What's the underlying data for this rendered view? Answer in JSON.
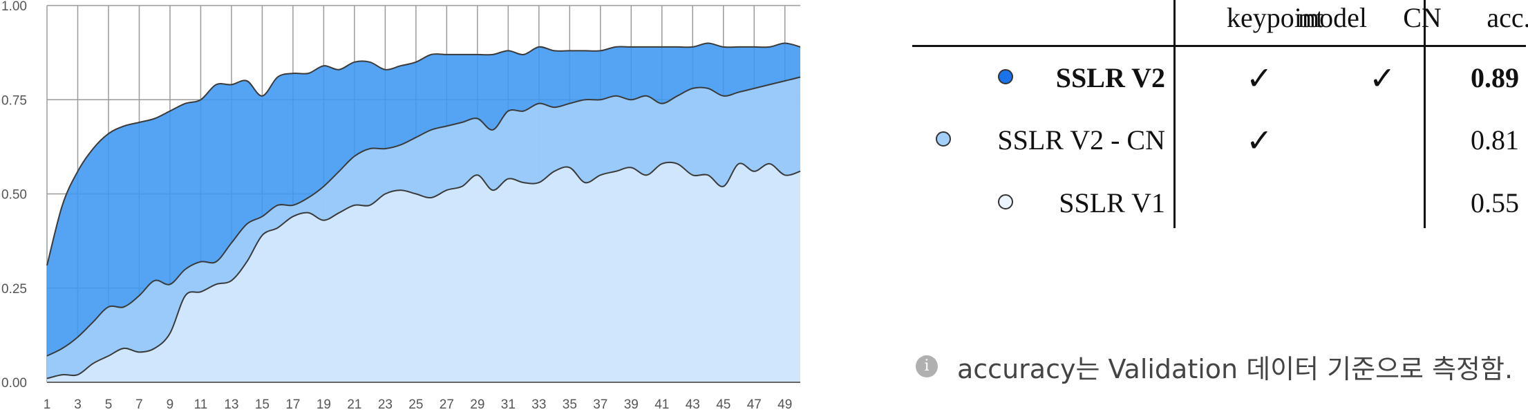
{
  "chart_data": {
    "type": "area",
    "x": [
      1,
      2,
      3,
      4,
      5,
      6,
      7,
      8,
      9,
      10,
      11,
      12,
      13,
      14,
      15,
      16,
      17,
      18,
      19,
      20,
      21,
      22,
      23,
      24,
      25,
      26,
      27,
      28,
      29,
      30,
      31,
      32,
      33,
      34,
      35,
      36,
      37,
      38,
      39,
      40,
      41,
      42,
      43,
      44,
      45,
      46,
      47,
      48,
      49,
      50
    ],
    "xticks": [
      "1",
      "3",
      "5",
      "7",
      "9",
      "11",
      "13",
      "15",
      "17",
      "19",
      "21",
      "23",
      "25",
      "27",
      "29",
      "31",
      "33",
      "35",
      "37",
      "39",
      "41",
      "43",
      "45",
      "47",
      "49"
    ],
    "yticks": [
      "0.00",
      "0.25",
      "0.50",
      "0.75",
      "1.00"
    ],
    "ylim": [
      0,
      1
    ],
    "grid": true,
    "series": [
      {
        "name": "SSLR V2",
        "color": "#3d97f3",
        "values": [
          0.31,
          0.47,
          0.56,
          0.62,
          0.66,
          0.68,
          0.69,
          0.7,
          0.72,
          0.74,
          0.75,
          0.79,
          0.79,
          0.8,
          0.76,
          0.81,
          0.82,
          0.82,
          0.84,
          0.83,
          0.85,
          0.85,
          0.83,
          0.84,
          0.85,
          0.87,
          0.87,
          0.87,
          0.87,
          0.87,
          0.88,
          0.87,
          0.89,
          0.88,
          0.88,
          0.88,
          0.88,
          0.89,
          0.89,
          0.89,
          0.89,
          0.89,
          0.89,
          0.9,
          0.89,
          0.89,
          0.89,
          0.89,
          0.9,
          0.89
        ]
      },
      {
        "name": "SSLR V2 - CN",
        "color": "#a3cff9",
        "values": [
          0.07,
          0.09,
          0.12,
          0.16,
          0.2,
          0.2,
          0.23,
          0.27,
          0.26,
          0.3,
          0.32,
          0.32,
          0.37,
          0.42,
          0.44,
          0.47,
          0.47,
          0.49,
          0.52,
          0.56,
          0.6,
          0.62,
          0.62,
          0.63,
          0.65,
          0.67,
          0.68,
          0.69,
          0.7,
          0.67,
          0.72,
          0.72,
          0.74,
          0.73,
          0.74,
          0.75,
          0.75,
          0.76,
          0.75,
          0.76,
          0.74,
          0.76,
          0.78,
          0.78,
          0.76,
          0.77,
          0.78,
          0.79,
          0.8,
          0.81
        ]
      },
      {
        "name": "SSLR V1",
        "color": "#d6e9fc",
        "values": [
          0.01,
          0.02,
          0.02,
          0.05,
          0.07,
          0.09,
          0.08,
          0.09,
          0.13,
          0.23,
          0.24,
          0.26,
          0.27,
          0.32,
          0.39,
          0.41,
          0.44,
          0.45,
          0.43,
          0.45,
          0.47,
          0.47,
          0.5,
          0.51,
          0.5,
          0.49,
          0.51,
          0.52,
          0.55,
          0.51,
          0.54,
          0.53,
          0.53,
          0.56,
          0.57,
          0.53,
          0.55,
          0.56,
          0.57,
          0.55,
          0.58,
          0.58,
          0.55,
          0.55,
          0.52,
          0.58,
          0.56,
          0.58,
          0.55,
          0.56
        ]
      }
    ]
  },
  "table": {
    "headers": {
      "model": "model",
      "keypoint": "keypoint",
      "cn": "CN",
      "acc": "acc."
    },
    "rows": [
      {
        "model": "SSLR V2",
        "keypoint": "✓",
        "cn": "✓",
        "acc": "0.89",
        "dot_color": "#1a73e8"
      },
      {
        "model": "SSLR V2 - CN",
        "keypoint": "✓",
        "cn": "",
        "acc": "0.81",
        "dot_color": "#a3cff9"
      },
      {
        "model": "SSLR V1",
        "keypoint": "",
        "cn": "",
        "acc": "0.55",
        "dot_color": "#eef5fd"
      }
    ]
  },
  "note": {
    "icon": "info-icon",
    "icon_glyph": "i",
    "text": "accuracy는 Validation 데이터 기준으로 측정함."
  }
}
